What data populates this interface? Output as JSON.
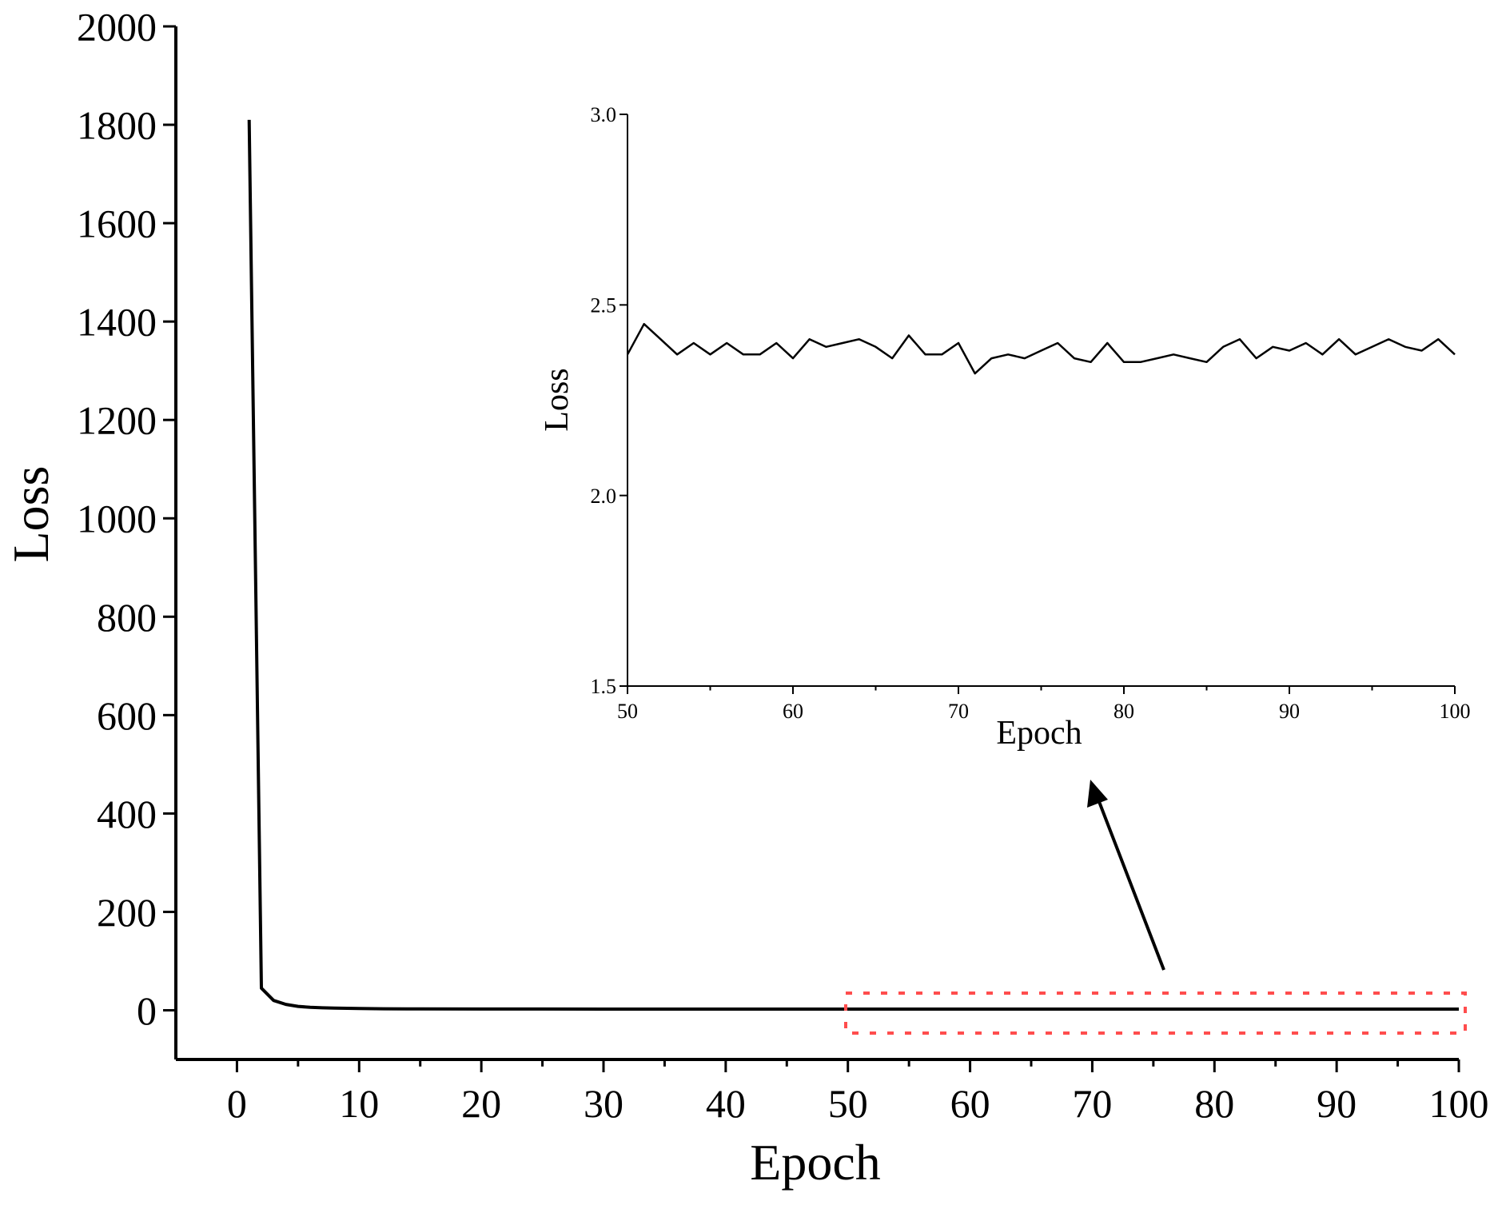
{
  "chart_data": [
    {
      "type": "line",
      "xlabel": "Epoch",
      "ylabel": "Loss",
      "xlim": [
        -5,
        100
      ],
      "ylim": [
        -100,
        2000
      ],
      "xticks": [
        0,
        10,
        20,
        30,
        40,
        50,
        60,
        70,
        80,
        90,
        100
      ],
      "yticks": [
        0,
        200,
        400,
        600,
        800,
        1000,
        1200,
        1400,
        1600,
        1800,
        2000
      ],
      "series": [
        {
          "color": "#000000",
          "x": [
            1,
            2,
            3,
            4,
            5,
            6,
            7,
            8,
            10,
            12,
            15,
            20,
            25,
            30,
            40,
            50,
            60,
            70,
            80,
            90,
            100
          ],
          "values": [
            1810,
            45,
            20,
            12,
            8,
            6,
            5,
            4.5,
            3.5,
            3,
            2.8,
            2.6,
            2.5,
            2.45,
            2.42,
            2.4,
            2.4,
            2.4,
            2.38,
            2.39,
            2.37
          ]
        }
      ]
    },
    {
      "type": "line",
      "xlabel": "Epoch",
      "ylabel": "Loss",
      "xlim": [
        50,
        100
      ],
      "ylim": [
        1.5,
        3.0
      ],
      "xticks": [
        50,
        60,
        70,
        80,
        90,
        100
      ],
      "yticks": [
        "1.5",
        "2.0",
        "2.5",
        "3.0"
      ],
      "series": [
        {
          "color": "#000000",
          "x": [
            50,
            51,
            52,
            53,
            54,
            55,
            56,
            57,
            58,
            59,
            60,
            61,
            62,
            63,
            64,
            65,
            66,
            67,
            68,
            69,
            70,
            71,
            72,
            73,
            74,
            75,
            76,
            77,
            78,
            79,
            80,
            81,
            82,
            83,
            84,
            85,
            86,
            87,
            88,
            89,
            90,
            91,
            92,
            93,
            94,
            95,
            96,
            97,
            98,
            99,
            100
          ],
          "values": [
            2.37,
            2.45,
            2.41,
            2.37,
            2.4,
            2.37,
            2.4,
            2.37,
            2.37,
            2.4,
            2.36,
            2.41,
            2.39,
            2.4,
            2.41,
            2.39,
            2.36,
            2.42,
            2.37,
            2.37,
            2.4,
            2.32,
            2.36,
            2.37,
            2.36,
            2.38,
            2.4,
            2.36,
            2.35,
            2.4,
            2.35,
            2.35,
            2.36,
            2.37,
            2.36,
            2.35,
            2.39,
            2.41,
            2.36,
            2.39,
            2.38,
            2.4,
            2.37,
            2.41,
            2.37,
            2.39,
            2.41,
            2.39,
            2.38,
            2.41,
            2.37
          ]
        }
      ]
    }
  ],
  "annotations": {
    "highlight_box_color": "#ff4d4d",
    "arrow_color": "#000000"
  }
}
